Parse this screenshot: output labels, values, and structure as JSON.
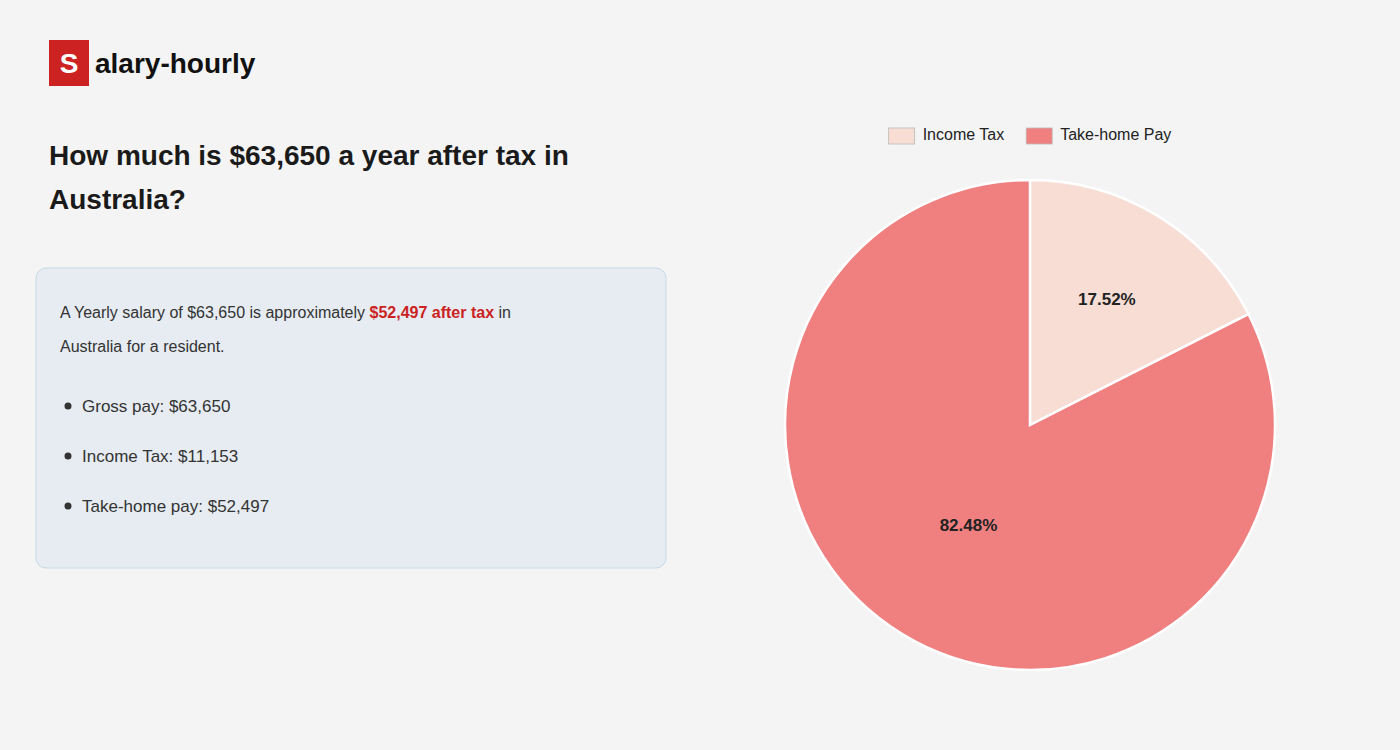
{
  "chart_data": {
    "type": "pie",
    "title": [
      "How much is $63,650 a year after tax in",
      "Australia?"
    ],
    "annotations": [
      [
        "S",
        "alary-hourly"
      ],
      [
        "A Yearly salary of $63,650 is approximately ",
        "$52,497 after tax",
        " in"
      ],
      [
        "Australia for a resident."
      ],
      [
        "Gross pay: $63,650"
      ],
      [
        "Income Tax: $11,153"
      ],
      [
        "Take-home pay: $52,497"
      ]
    ],
    "categories": [
      "Income Tax",
      "Take-home Pay"
    ],
    "values": [
      17.52,
      82.48
    ],
    "value_labels": [
      "17.52%",
      "82.48%"
    ],
    "colors": [
      "#f8ddd5",
      "#f08080"
    ],
    "data_labels": true,
    "legend": "top"
  }
}
